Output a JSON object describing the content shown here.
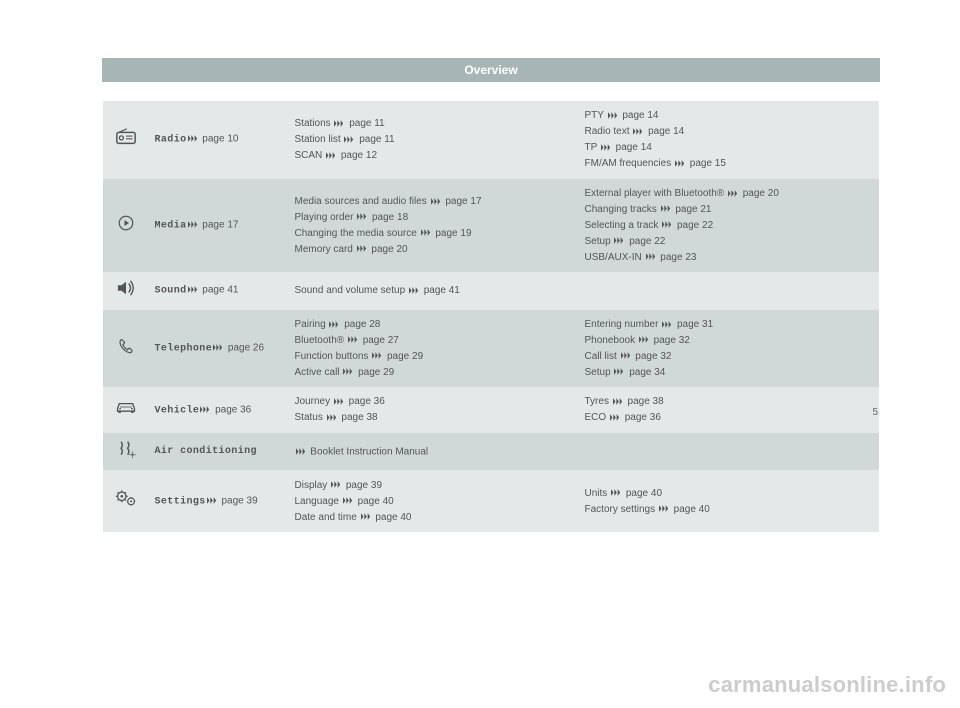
{
  "page": {
    "title": "Overview",
    "number": "5",
    "watermark": "carmanualsonline.info"
  },
  "colors": {
    "titlebar_bg": "#a8b5b5",
    "row_light": "#e4e8e8",
    "row_dark": "#d1d8d8",
    "text": "#555555",
    "watermark": "#cccccc"
  },
  "sections": [
    {
      "icon": "radio-icon",
      "label": "Radio",
      "labelPage": "page 10",
      "col2": [
        {
          "t": "Stations",
          "p": "page 11"
        },
        {
          "t": "Station list",
          "p": "page 11"
        },
        {
          "t": "SCAN",
          "p": "page 12"
        }
      ],
      "col3": [
        {
          "t": "PTY",
          "p": "page 14"
        },
        {
          "t": "Radio text",
          "p": "page 14"
        },
        {
          "t": "TP",
          "p": "page 14"
        },
        {
          "t": "FM/AM frequencies",
          "p": "page 15"
        }
      ]
    },
    {
      "icon": "media-icon",
      "label": "Media",
      "labelPage": "page 17",
      "col2": [
        {
          "t": "Media sources and audio files",
          "p": "page 17"
        },
        {
          "t": "Playing order",
          "p": "page 18"
        },
        {
          "t": "Changing the media source",
          "p": "page 19"
        },
        {
          "t": "Memory card",
          "p": "page 20"
        }
      ],
      "col3": [
        {
          "t": "External player with Bluetooth®",
          "p": "page 20"
        },
        {
          "t": "Changing tracks",
          "p": "page 21"
        },
        {
          "t": "Selecting a track",
          "p": "page 22"
        },
        {
          "t": "Setup",
          "p": "page 22"
        },
        {
          "t": "USB/AUX-IN",
          "p": "page 23"
        }
      ]
    },
    {
      "icon": "sound-icon",
      "label": "Sound",
      "labelPage": "page 41",
      "col2": [
        {
          "t": "Sound and volume setup",
          "p": "page 41"
        }
      ],
      "col3": []
    },
    {
      "icon": "telephone-icon",
      "label": "Telephone",
      "labelPage": "page 26",
      "col2": [
        {
          "t": "Pairing",
          "p": "page 28"
        },
        {
          "t": "Bluetooth®",
          "p": "page 27"
        },
        {
          "t": "Function buttons",
          "p": "page 29"
        },
        {
          "t": "Active call",
          "p": "page 29"
        }
      ],
      "col3": [
        {
          "t": "Entering number",
          "p": "page 31"
        },
        {
          "t": "Phonebook",
          "p": "page 32"
        },
        {
          "t": "Call list",
          "p": "page 32"
        },
        {
          "t": "Setup",
          "p": "page 34"
        }
      ]
    },
    {
      "icon": "vehicle-icon",
      "label": "Vehicle",
      "labelPage": "page 36",
      "col2": [
        {
          "t": "Journey",
          "p": "page 36"
        },
        {
          "t": "Status",
          "p": "page 38"
        }
      ],
      "col3": [
        {
          "t": "Tyres",
          "p": "page 38"
        },
        {
          "t": "ECO",
          "p": "page 36"
        }
      ]
    },
    {
      "icon": "aircon-icon",
      "label": "Air conditioning",
      "labelPage": "",
      "col2_raw": "Booklet Instruction Manual",
      "col3": []
    },
    {
      "icon": "settings-icon",
      "label": "Settings",
      "labelPage": "page 39",
      "col2": [
        {
          "t": "Display",
          "p": "page 39"
        },
        {
          "t": "Language",
          "p": "page 40"
        },
        {
          "t": "Date and time",
          "p": "page 40"
        }
      ],
      "col3": [
        {
          "t": "Units",
          "p": "page 40"
        },
        {
          "t": "Factory settings",
          "p": "page 40"
        }
      ]
    }
  ]
}
